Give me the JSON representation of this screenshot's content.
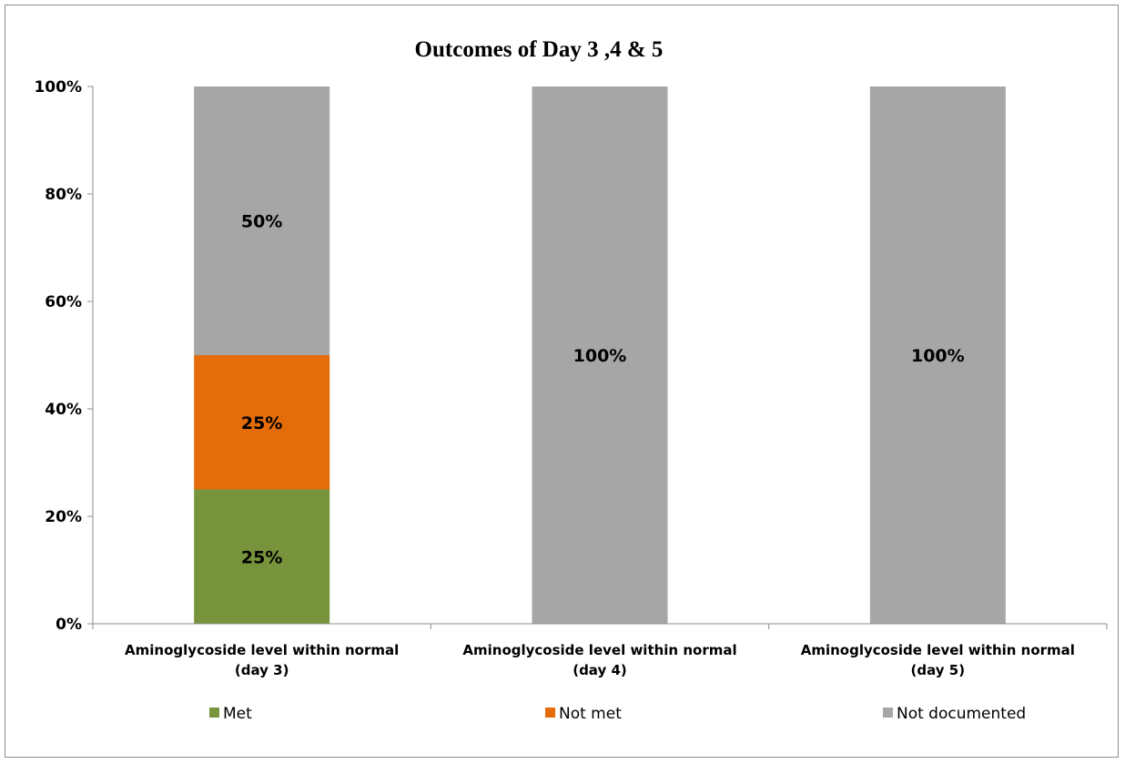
{
  "chart_data": {
    "type": "bar",
    "stacked": true,
    "percent_stacked": true,
    "title": "Outcomes of Day 3 ,4 & 5",
    "categories": [
      [
        "Aminoglycoside level within normal",
        "(day 3)"
      ],
      [
        "Aminoglycoside level within normal",
        "(day 4)"
      ],
      [
        "Aminoglycoside level within normal",
        "(day 5)"
      ]
    ],
    "series": [
      {
        "name": "Met",
        "color": "#77933c",
        "values": [
          25,
          0,
          0
        ],
        "labels": [
          "25%",
          "",
          ""
        ]
      },
      {
        "name": "Not met",
        "color": "#e46c0a",
        "values": [
          25,
          0,
          0
        ],
        "labels": [
          "25%",
          "",
          ""
        ]
      },
      {
        "name": "Not documented",
        "color": "#a6a6a6",
        "values": [
          50,
          100,
          100
        ],
        "labels": [
          "50%",
          "100%",
          "100%"
        ]
      }
    ],
    "ylim": [
      0,
      100
    ],
    "yticks": [
      0,
      20,
      40,
      60,
      80,
      100
    ],
    "ytick_labels": [
      "0%",
      "20%",
      "40%",
      "60%",
      "80%",
      "100%"
    ],
    "grid": false,
    "legend_position": "bottom"
  }
}
